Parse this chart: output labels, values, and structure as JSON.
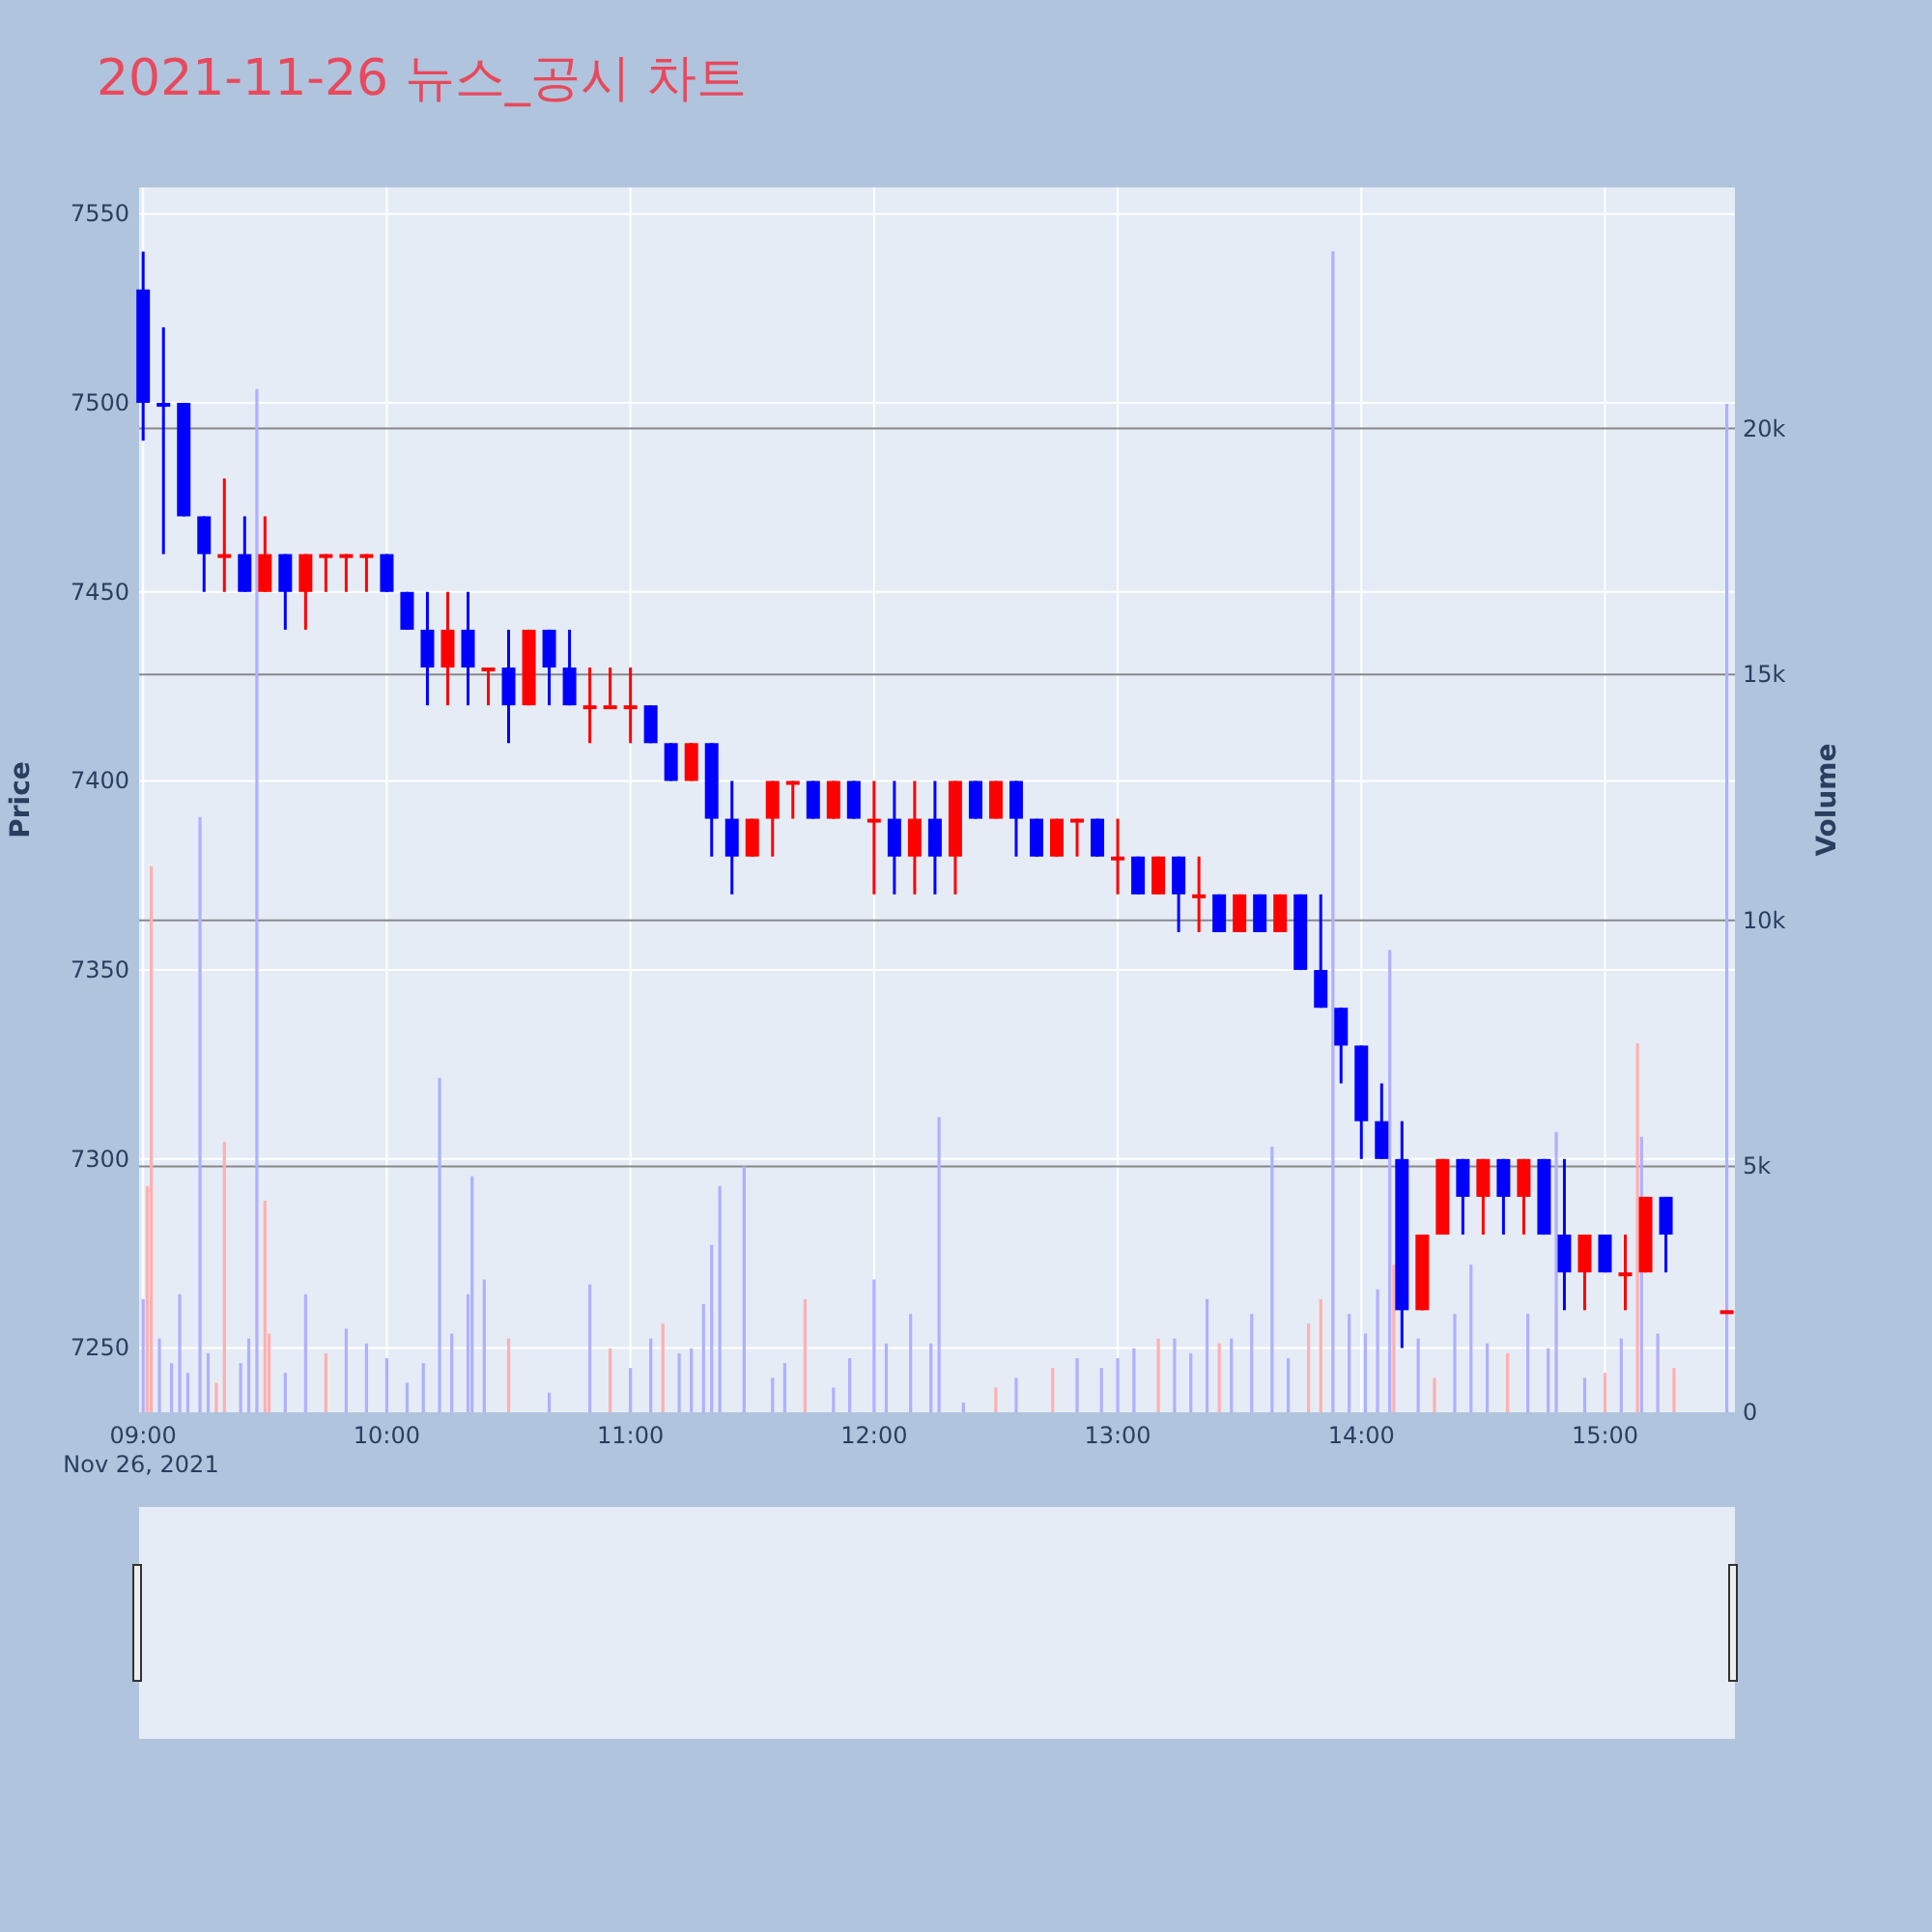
{
  "chart_data": {
    "type": "candlestick",
    "title": "2021-11-26 뉴스_공시 차트",
    "ylabel": "Price",
    "y2label": "Volume",
    "annotations": [
      "Nov 26, 2021"
    ],
    "x": [
      "2021-11-26T09:00",
      "2021-11-26T09:05",
      "2021-11-26T09:10",
      "2021-11-26T09:15",
      "2021-11-26T09:20",
      "2021-11-26T09:25",
      "2021-11-26T09:30",
      "2021-11-26T09:35",
      "2021-11-26T09:40",
      "2021-11-26T09:45",
      "2021-11-26T09:50",
      "2021-11-26T09:55",
      "2021-11-26T10:00",
      "2021-11-26T10:05",
      "2021-11-26T10:10",
      "2021-11-26T10:15",
      "2021-11-26T10:20",
      "2021-11-26T10:25",
      "2021-11-26T10:30",
      "2021-11-26T10:35",
      "2021-11-26T10:40",
      "2021-11-26T10:45",
      "2021-11-26T10:50",
      "2021-11-26T10:55",
      "2021-11-26T11:00",
      "2021-11-26T11:05",
      "2021-11-26T11:10",
      "2021-11-26T11:15",
      "2021-11-26T11:20",
      "2021-11-26T11:25",
      "2021-11-26T11:30",
      "2021-11-26T11:35",
      "2021-11-26T11:40",
      "2021-11-26T11:45",
      "2021-11-26T11:50",
      "2021-11-26T11:55",
      "2021-11-26T12:00",
      "2021-11-26T12:05",
      "2021-11-26T12:10",
      "2021-11-26T12:15",
      "2021-11-26T12:20",
      "2021-11-26T12:25",
      "2021-11-26T12:30",
      "2021-11-26T12:35",
      "2021-11-26T12:40",
      "2021-11-26T12:45",
      "2021-11-26T12:50",
      "2021-11-26T12:55",
      "2021-11-26T13:00",
      "2021-11-26T13:05",
      "2021-11-26T13:10",
      "2021-11-26T13:15",
      "2021-11-26T13:20",
      "2021-11-26T13:25",
      "2021-11-26T13:30",
      "2021-11-26T13:35",
      "2021-11-26T13:40",
      "2021-11-26T13:45",
      "2021-11-26T13:50",
      "2021-11-26T13:55",
      "2021-11-26T14:00",
      "2021-11-26T14:05",
      "2021-11-26T14:10",
      "2021-11-26T14:15",
      "2021-11-26T14:20",
      "2021-11-26T14:25",
      "2021-11-26T14:30",
      "2021-11-26T14:35",
      "2021-11-26T14:40",
      "2021-11-26T14:45",
      "2021-11-26T14:50",
      "2021-11-26T14:55",
      "2021-11-26T15:00",
      "2021-11-26T15:05",
      "2021-11-26T15:10",
      "2021-11-26T15:15",
      "2021-11-26T15:30"
    ],
    "ohlc": [
      [
        7530,
        7540,
        7490,
        7500
      ],
      [
        7500,
        7520,
        7460,
        7500
      ],
      [
        7500,
        7500,
        7470,
        7470
      ],
      [
        7470,
        7470,
        7450,
        7460
      ],
      [
        7460,
        7480,
        7450,
        7460
      ],
      [
        7460,
        7470,
        7450,
        7450
      ],
      [
        7450,
        7470,
        7450,
        7460
      ],
      [
        7460,
        7460,
        7440,
        7450
      ],
      [
        7450,
        7460,
        7440,
        7460
      ],
      [
        7460,
        7460,
        7450,
        7460
      ],
      [
        7460,
        7460,
        7450,
        7460
      ],
      [
        7460,
        7460,
        7450,
        7460
      ],
      [
        7460,
        7460,
        7450,
        7450
      ],
      [
        7450,
        7450,
        7440,
        7440
      ],
      [
        7440,
        7450,
        7420,
        7430
      ],
      [
        7430,
        7450,
        7420,
        7440
      ],
      [
        7440,
        7450,
        7420,
        7430
      ],
      [
        7430,
        7430,
        7420,
        7430
      ],
      [
        7430,
        7440,
        7410,
        7420
      ],
      [
        7420,
        7440,
        7420,
        7440
      ],
      [
        7440,
        7440,
        7420,
        7430
      ],
      [
        7430,
        7440,
        7420,
        7420
      ],
      [
        7420,
        7430,
        7410,
        7420
      ],
      [
        7420,
        7430,
        7420,
        7420
      ],
      [
        7420,
        7430,
        7410,
        7420
      ],
      [
        7420,
        7420,
        7410,
        7410
      ],
      [
        7410,
        7410,
        7400,
        7400
      ],
      [
        7400,
        7410,
        7400,
        7410
      ],
      [
        7410,
        7410,
        7380,
        7390
      ],
      [
        7390,
        7400,
        7370,
        7380
      ],
      [
        7380,
        7390,
        7380,
        7390
      ],
      [
        7390,
        7400,
        7380,
        7400
      ],
      [
        7400,
        7400,
        7390,
        7400
      ],
      [
        7400,
        7400,
        7390,
        7390
      ],
      [
        7390,
        7400,
        7390,
        7400
      ],
      [
        7400,
        7400,
        7390,
        7390
      ],
      [
        7390,
        7400,
        7370,
        7390
      ],
      [
        7390,
        7400,
        7370,
        7380
      ],
      [
        7380,
        7400,
        7370,
        7390
      ],
      [
        7390,
        7400,
        7370,
        7380
      ],
      [
        7380,
        7400,
        7370,
        7400
      ],
      [
        7400,
        7400,
        7390,
        7390
      ],
      [
        7390,
        7400,
        7390,
        7400
      ],
      [
        7400,
        7400,
        7380,
        7390
      ],
      [
        7390,
        7390,
        7380,
        7380
      ],
      [
        7380,
        7390,
        7380,
        7390
      ],
      [
        7390,
        7390,
        7380,
        7390
      ],
      [
        7390,
        7390,
        7380,
        7380
      ],
      [
        7380,
        7390,
        7370,
        7380
      ],
      [
        7380,
        7380,
        7370,
        7370
      ],
      [
        7370,
        7380,
        7370,
        7380
      ],
      [
        7380,
        7380,
        7360,
        7370
      ],
      [
        7370,
        7380,
        7360,
        7370
      ],
      [
        7370,
        7370,
        7360,
        7360
      ],
      [
        7360,
        7370,
        7360,
        7370
      ],
      [
        7370,
        7370,
        7360,
        7360
      ],
      [
        7360,
        7370,
        7360,
        7370
      ],
      [
        7370,
        7370,
        7350,
        7350
      ],
      [
        7350,
        7370,
        7340,
        7340
      ],
      [
        7340,
        7340,
        7320,
        7330
      ],
      [
        7330,
        7330,
        7300,
        7310
      ],
      [
        7310,
        7320,
        7300,
        7300
      ],
      [
        7300,
        7310,
        7250,
        7260
      ],
      [
        7260,
        7280,
        7260,
        7280
      ],
      [
        7280,
        7300,
        7280,
        7300
      ],
      [
        7300,
        7300,
        7280,
        7290
      ],
      [
        7290,
        7300,
        7280,
        7300
      ],
      [
        7300,
        7300,
        7280,
        7290
      ],
      [
        7290,
        7300,
        7280,
        7300
      ],
      [
        7300,
        7300,
        7280,
        7280
      ],
      [
        7280,
        7300,
        7260,
        7270
      ],
      [
        7270,
        7280,
        7260,
        7280
      ],
      [
        7280,
        7280,
        7270,
        7270
      ],
      [
        7270,
        7280,
        7260,
        7270
      ],
      [
        7270,
        7290,
        7270,
        7290
      ],
      [
        7290,
        7290,
        7270,
        7280
      ],
      [
        7260,
        7260,
        7260,
        7260
      ]
    ],
    "colors": [
      "#0000ff",
      "#0000ff",
      "#0000ff",
      "#0000ff",
      "#ff0000",
      "#0000ff",
      "#ff0000",
      "#0000ff",
      "#ff0000",
      "#ff0000",
      "#ff0000",
      "#ff0000",
      "#0000ff",
      "#0000ff",
      "#0000ff",
      "#ff0000",
      "#0000ff",
      "#ff0000",
      "#0000ff",
      "#ff0000",
      "#0000ff",
      "#0000ff",
      "#ff0000",
      "#ff0000",
      "#ff0000",
      "#0000ff",
      "#0000ff",
      "#ff0000",
      "#0000ff",
      "#0000ff",
      "#ff0000",
      "#ff0000",
      "#ff0000",
      "#0000ff",
      "#ff0000",
      "#0000ff",
      "#ff0000",
      "#0000ff",
      "#ff0000",
      "#0000ff",
      "#ff0000",
      "#0000ff",
      "#ff0000",
      "#0000ff",
      "#0000ff",
      "#ff0000",
      "#ff0000",
      "#0000ff",
      "#ff0000",
      "#0000ff",
      "#ff0000",
      "#0000ff",
      "#ff0000",
      "#0000ff",
      "#ff0000",
      "#0000ff",
      "#ff0000",
      "#0000ff",
      "#0000ff",
      "#0000ff",
      "#0000ff",
      "#0000ff",
      "#0000ff",
      "#ff0000",
      "#ff0000",
      "#0000ff",
      "#ff0000",
      "#0000ff",
      "#ff0000",
      "#0000ff",
      "#0000ff",
      "#ff0000",
      "#0000ff",
      "#ff0000",
      "#ff0000",
      "#0000ff",
      "#ff0000"
    ],
    "series": [
      {
        "type": "bar",
        "axis": "y2",
        "x": [
          "2021-11-26T09:00",
          "2021-11-26T09:01",
          "2021-11-26T09:02",
          "2021-11-26T09:04",
          "2021-11-26T09:07",
          "2021-11-26T09:09",
          "2021-11-26T09:11",
          "2021-11-26T09:14",
          "2021-11-26T09:16",
          "2021-11-26T09:18",
          "2021-11-26T09:20",
          "2021-11-26T09:24",
          "2021-11-26T09:26",
          "2021-11-26T09:28",
          "2021-11-26T09:30",
          "2021-11-26T09:31",
          "2021-11-26T09:35",
          "2021-11-26T09:40",
          "2021-11-26T09:45",
          "2021-11-26T09:50",
          "2021-11-26T09:55",
          "2021-11-26T10:00",
          "2021-11-26T10:05",
          "2021-11-26T10:09",
          "2021-11-26T10:13",
          "2021-11-26T10:16",
          "2021-11-26T10:20",
          "2021-11-26T10:21",
          "2021-11-26T10:24",
          "2021-11-26T10:30",
          "2021-11-26T10:40",
          "2021-11-26T10:50",
          "2021-11-26T10:55",
          "2021-11-26T11:00",
          "2021-11-26T11:05",
          "2021-11-26T11:08",
          "2021-11-26T11:12",
          "2021-11-26T11:15",
          "2021-11-26T11:18",
          "2021-11-26T11:20",
          "2021-11-26T11:22",
          "2021-11-26T11:28",
          "2021-11-26T11:35",
          "2021-11-26T11:38",
          "2021-11-26T11:43",
          "2021-11-26T11:50",
          "2021-11-26T11:54",
          "2021-11-26T12:00",
          "2021-11-26T12:03",
          "2021-11-26T12:09",
          "2021-11-26T12:14",
          "2021-11-26T12:16",
          "2021-11-26T12:22",
          "2021-11-26T12:30",
          "2021-11-26T12:35",
          "2021-11-26T12:44",
          "2021-11-26T12:50",
          "2021-11-26T12:56",
          "2021-11-26T13:00",
          "2021-11-26T13:04",
          "2021-11-26T13:10",
          "2021-11-26T13:14",
          "2021-11-26T13:18",
          "2021-11-26T13:22",
          "2021-11-26T13:25",
          "2021-11-26T13:28",
          "2021-11-26T13:33",
          "2021-11-26T13:38",
          "2021-11-26T13:42",
          "2021-11-26T13:47",
          "2021-11-26T13:50",
          "2021-11-26T13:53",
          "2021-11-26T13:57",
          "2021-11-26T14:01",
          "2021-11-26T14:04",
          "2021-11-26T14:07",
          "2021-11-26T14:08",
          "2021-11-26T14:14",
          "2021-11-26T14:18",
          "2021-11-26T14:23",
          "2021-11-26T14:27",
          "2021-11-26T14:31",
          "2021-11-26T14:36",
          "2021-11-26T14:41",
          "2021-11-26T14:46",
          "2021-11-26T14:48",
          "2021-11-26T14:55",
          "2021-11-26T15:00",
          "2021-11-26T15:04",
          "2021-11-26T15:08",
          "2021-11-26T15:09",
          "2021-11-26T15:13",
          "2021-11-26T15:17",
          "2021-11-26T15:30"
        ],
        "values": [
          2300,
          4600,
          11100,
          1500,
          1000,
          2400,
          800,
          12100,
          1200,
          600,
          5500,
          1000,
          1500,
          20800,
          4300,
          1600,
          800,
          2400,
          1200,
          1700,
          1400,
          1100,
          600,
          1000,
          6800,
          1600,
          2400,
          4800,
          2700,
          1500,
          400,
          2600,
          1300,
          900,
          1500,
          1800,
          1200,
          1300,
          2200,
          3400,
          4600,
          5000,
          700,
          1000,
          2300,
          500,
          1100,
          2700,
          1400,
          2000,
          1400,
          6000,
          200,
          500,
          700,
          900,
          1100,
          900,
          1100,
          1300,
          1500,
          1500,
          1200,
          2300,
          1400,
          1500,
          2000,
          5400,
          1100,
          1800,
          2300,
          23600,
          2000,
          1600,
          2500,
          9400,
          3000,
          1500,
          700,
          2000,
          3000,
          1400,
          1200,
          2000,
          1300,
          5700,
          700,
          800,
          1500,
          7500,
          5600,
          1600,
          900,
          20500
        ],
        "colors": [
          "#b0b0ff",
          "#ffb0b0",
          "#ffb0b0",
          "#b0b0ff",
          "#b0b0ff",
          "#b0b0ff",
          "#b0b0ff",
          "#b0b0ff",
          "#b0b0ff",
          "#ffb0b0",
          "#ffb0b0",
          "#b0b0ff",
          "#b0b0ff",
          "#b0b0ff",
          "#ffb0b0",
          "#ffb0b0",
          "#b0b0ff",
          "#b0b0ff",
          "#ffb0b0",
          "#b0b0ff",
          "#b0b0ff",
          "#b0b0ff",
          "#b0b0ff",
          "#b0b0ff",
          "#b0b0ff",
          "#b0b0ff",
          "#b0b0ff",
          "#b0b0ff",
          "#b0b0ff",
          "#ffb0b0",
          "#b0b0ff",
          "#b0b0ff",
          "#ffb0b0",
          "#b0b0ff",
          "#b0b0ff",
          "#ffb0b0",
          "#b0b0ff",
          "#b0b0ff",
          "#b0b0ff",
          "#b0b0ff",
          "#b0b0ff",
          "#b0b0ff",
          "#b0b0ff",
          "#b0b0ff",
          "#ffb0b0",
          "#b0b0ff",
          "#b0b0ff",
          "#b0b0ff",
          "#b0b0ff",
          "#b0b0ff",
          "#b0b0ff",
          "#b0b0ff",
          "#b0b0ff",
          "#ffb0b0",
          "#b0b0ff",
          "#ffb0b0",
          "#b0b0ff",
          "#b0b0ff",
          "#b0b0ff",
          "#b0b0ff",
          "#ffb0b0",
          "#b0b0ff",
          "#b0b0ff",
          "#b0b0ff",
          "#ffb0b0",
          "#b0b0ff",
          "#b0b0ff",
          "#b0b0ff",
          "#b0b0ff",
          "#ffb0b0",
          "#ffb0b0",
          "#b0b0ff",
          "#b0b0ff",
          "#b0b0ff",
          "#b0b0ff",
          "#b0b0ff",
          "#ffb0b0",
          "#b0b0ff",
          "#ffb0b0",
          "#b0b0ff",
          "#b0b0ff",
          "#b0b0ff",
          "#ffb0b0",
          "#b0b0ff",
          "#b0b0ff",
          "#b0b0ff",
          "#b0b0ff",
          "#ffb0b0",
          "#b0b0ff",
          "#ffb0b0",
          "#b0b0ff",
          "#b0b0ff",
          "#ffb0b0",
          "#b0b0ff"
        ]
      }
    ],
    "xlim": [
      "2021-11-26T08:59",
      "2021-11-26T15:32"
    ],
    "xticks": [
      {
        "value": "2021-11-26T09:00",
        "label": "09:00"
      },
      {
        "value": "2021-11-26T10:00",
        "label": "10:00"
      },
      {
        "value": "2021-11-26T11:00",
        "label": "11:00"
      },
      {
        "value": "2021-11-26T12:00",
        "label": "12:00"
      },
      {
        "value": "2021-11-26T13:00",
        "label": "13:00"
      },
      {
        "value": "2021-11-26T14:00",
        "label": "14:00"
      },
      {
        "value": "2021-11-26T15:00",
        "label": "15:00"
      }
    ],
    "ylim": [
      7233,
      7557
    ],
    "yticks": [
      7250,
      7300,
      7350,
      7400,
      7450,
      7500,
      7550
    ],
    "y2lim": [
      0,
      24900
    ],
    "y2ticks": [
      0,
      {
        "value": 5000,
        "label": "5k"
      },
      {
        "value": 10000,
        "label": "10k"
      },
      {
        "value": 15000,
        "label": "15k"
      },
      {
        "value": 20000,
        "label": "20k"
      }
    ],
    "grid": true,
    "legend": false
  }
}
